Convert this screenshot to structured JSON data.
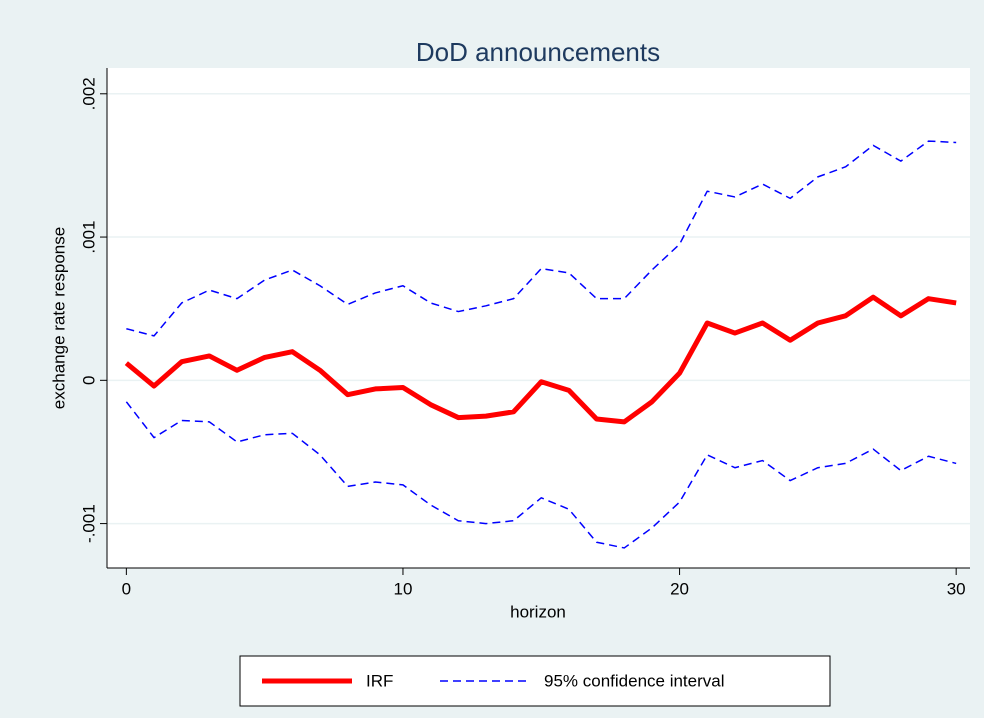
{
  "chart_data": {
    "type": "line",
    "title": "DoD announcements",
    "x_label": "horizon",
    "y_label": "exchange rate response",
    "x": [
      0,
      1,
      2,
      3,
      4,
      5,
      6,
      7,
      8,
      9,
      10,
      11,
      12,
      13,
      14,
      15,
      16,
      17,
      18,
      19,
      20,
      21,
      22,
      23,
      24,
      25,
      26,
      27,
      28,
      29,
      30
    ],
    "series": [
      {
        "name": "IRF",
        "color": "#ff0000",
        "dashed": false,
        "values": [
          0.00012,
          -4e-05,
          0.00013,
          0.00017,
          7e-05,
          0.00016,
          0.0002,
          7e-05,
          -0.0001,
          -6e-05,
          -5e-05,
          -0.00017,
          -0.00026,
          -0.00025,
          -0.00022,
          -1e-05,
          -7e-05,
          -0.00027,
          -0.00029,
          -0.00015,
          5e-05,
          0.0004,
          0.00033,
          0.0004,
          0.00028,
          0.0004,
          0.00045,
          0.00058,
          0.00045,
          0.00057,
          0.00054
        ]
      },
      {
        "name": "95% confidence interval",
        "color": "#0000ff",
        "dashed": true,
        "upper": [
          0.00036,
          0.00031,
          0.00054,
          0.00063,
          0.00057,
          0.0007,
          0.00077,
          0.00066,
          0.00053,
          0.00061,
          0.00066,
          0.00054,
          0.00048,
          0.00052,
          0.00057,
          0.00078,
          0.00075,
          0.00057,
          0.00057,
          0.00077,
          0.00095,
          0.00132,
          0.00128,
          0.00137,
          0.00127,
          0.00142,
          0.00149,
          0.00164,
          0.00153,
          0.00167,
          0.00166
        ],
        "lower": [
          -0.00015,
          -0.0004,
          -0.00028,
          -0.00029,
          -0.00043,
          -0.00038,
          -0.00037,
          -0.00052,
          -0.00074,
          -0.00071,
          -0.00073,
          -0.00087,
          -0.00098,
          -0.001,
          -0.00098,
          -0.00082,
          -0.0009,
          -0.00113,
          -0.00117,
          -0.00103,
          -0.00085,
          -0.00052,
          -0.00061,
          -0.00056,
          -0.0007,
          -0.00061,
          -0.00058,
          -0.00048,
          -0.00063,
          -0.00053,
          -0.00058
        ]
      }
    ],
    "xlim": [
      -0.7,
      30.5
    ],
    "xticks": [
      0,
      10,
      20,
      30
    ],
    "ylim": [
      -0.00131,
      0.00218
    ],
    "yticks": [
      {
        "value": -0.001,
        "label": "-.001"
      },
      0,
      {
        "value": 0.001,
        "label": ".001"
      },
      {
        "value": 0.002,
        "label": ".002"
      }
    ],
    "grid": true,
    "legend": "bottom"
  }
}
